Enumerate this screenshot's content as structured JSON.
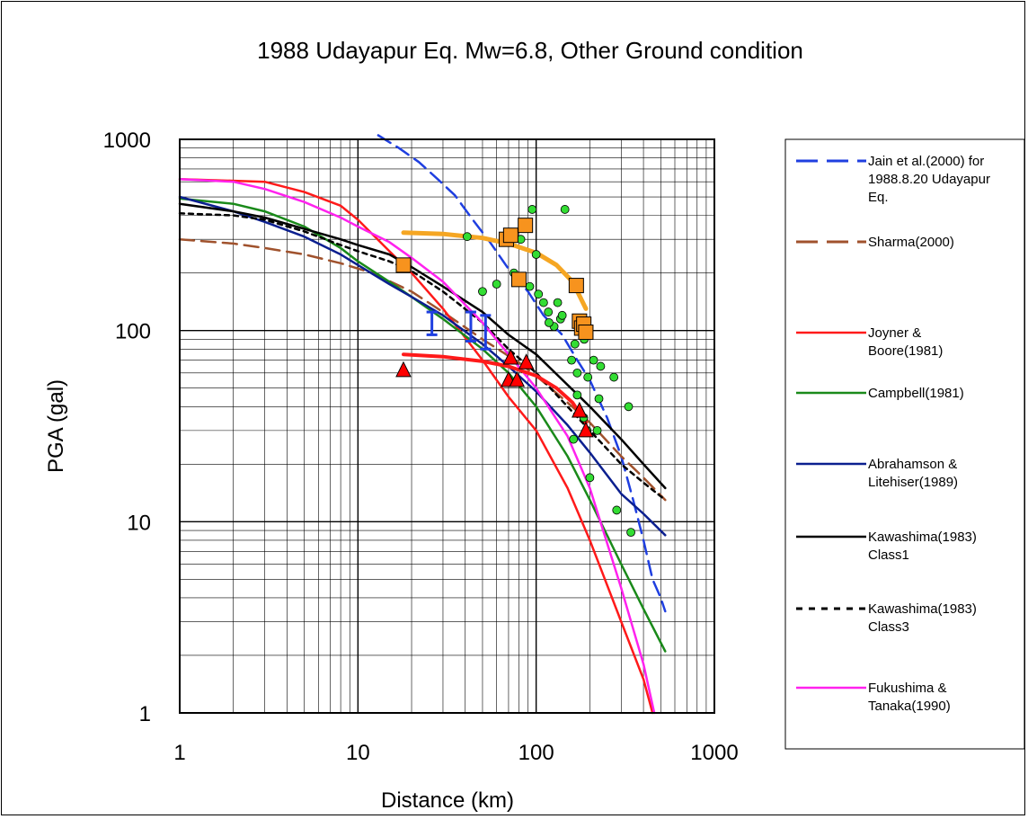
{
  "chart_data": {
    "type": "scatter",
    "title": "1988 Udayapur Eq. Mw=6.8, Other Ground condition",
    "xlabel": "Distance (km)",
    "ylabel": "PGA (gal)",
    "xscale": "log",
    "yscale": "log",
    "xlim": [
      1,
      1000
    ],
    "ylim": [
      1,
      1000
    ],
    "grid": true,
    "legend_position": "right",
    "x_ticks": [
      "1",
      "10",
      "100",
      "1000"
    ],
    "y_ticks": [
      "1",
      "10",
      "100",
      "1000"
    ],
    "legend": [
      {
        "label": "Jain et al.(2000) for 1988.8.20 Udayapur Eq.",
        "lines": [
          "Jain et al.(2000) for",
          "1988.8.20 Udayapur",
          "Eq."
        ],
        "color": "#1f3fe0",
        "dash": "dash"
      },
      {
        "label": "Sharma(2000)",
        "lines": [
          "Sharma(2000)"
        ],
        "color": "#a0522d",
        "dash": "dash"
      },
      {
        "label": "Joyner & Boore(1981)",
        "lines": [
          "Joyner &",
          "Boore(1981)"
        ],
        "color": "#ff1a1a",
        "dash": "solid"
      },
      {
        "label": "Campbell(1981)",
        "lines": [
          "Campbell(1981)"
        ],
        "color": "#1a8a1a",
        "dash": "solid"
      },
      {
        "label": "Abrahamson & Litehiser(1989)",
        "lines": [
          "Abrahamson &",
          "Litehiser(1989)"
        ],
        "color": "#0b1f8f",
        "dash": "solid"
      },
      {
        "label": "Kawashima(1983) Class1",
        "lines": [
          "Kawashima(1983)",
          "Class1"
        ],
        "color": "#000000",
        "dash": "solid"
      },
      {
        "label": "Kawashima(1983) Class3",
        "lines": [
          "Kawashima(1983)",
          "Class3"
        ],
        "color": "#000000",
        "dash": "dot"
      },
      {
        "label": "Fukushima & Tanaka(1990)",
        "lines": [
          "Fukushima &",
          "Tanaka(1990)"
        ],
        "color": "#ff22ee",
        "dash": "solid"
      }
    ],
    "curves": [
      {
        "name": "Jain et al.(2000) for 1988.8.20 Udayapur Eq.",
        "color": "#1f3fe0",
        "dash": "dash",
        "width": 2.5,
        "x": [
          13,
          17,
          22,
          28,
          35,
          45,
          55,
          70,
          90,
          110,
          140,
          170,
          200,
          250,
          300,
          350,
          400,
          450,
          500,
          530
        ],
        "y": [
          1050,
          900,
          760,
          620,
          510,
          370,
          290,
          210,
          160,
          120,
          95,
          70,
          55,
          35,
          22,
          13,
          8,
          5,
          4,
          3.4
        ]
      },
      {
        "name": "Sharma(2000)",
        "color": "#a0522d",
        "dash": "dash",
        "width": 2.5,
        "x": [
          1,
          2,
          3,
          5,
          8,
          12,
          20,
          30,
          50,
          80,
          100,
          150,
          200,
          300,
          400,
          530
        ],
        "y": [
          300,
          285,
          270,
          250,
          225,
          200,
          160,
          125,
          90,
          68,
          58,
          42,
          33,
          22,
          17,
          13
        ]
      },
      {
        "name": "Joyner & Boore(1981)",
        "color": "#ff1a1a",
        "dash": "solid",
        "width": 2.5,
        "x": [
          1,
          3,
          5,
          8,
          10,
          15,
          20,
          30,
          50,
          70,
          100,
          150,
          200,
          300,
          400,
          450
        ],
        "y": [
          620,
          600,
          530,
          450,
          380,
          260,
          200,
          130,
          70,
          45,
          30,
          15,
          8,
          3,
          1.5,
          1
        ]
      },
      {
        "name": "Campbell(1981)",
        "color": "#1a8a1a",
        "dash": "solid",
        "width": 2.5,
        "x": [
          1,
          2,
          3,
          5,
          8,
          10,
          15,
          20,
          30,
          50,
          70,
          100,
          150,
          200,
          300,
          400,
          530
        ],
        "y": [
          490,
          460,
          420,
          350,
          270,
          230,
          180,
          150,
          115,
          80,
          60,
          40,
          22,
          13,
          6,
          3.5,
          2.1
        ]
      },
      {
        "name": "Abrahamson & Litehiser(1989)",
        "color": "#0b1f8f",
        "dash": "solid",
        "width": 2.5,
        "x": [
          1,
          2,
          3,
          5,
          8,
          10,
          15,
          20,
          30,
          50,
          70,
          100,
          150,
          200,
          300,
          400,
          530
        ],
        "y": [
          500,
          420,
          370,
          310,
          250,
          220,
          175,
          150,
          120,
          85,
          65,
          48,
          32,
          23,
          14,
          11,
          8.5
        ]
      },
      {
        "name": "Kawashima(1983) Class1",
        "color": "#000000",
        "dash": "solid",
        "width": 2.5,
        "x": [
          1,
          2,
          3,
          5,
          8,
          10,
          15,
          20,
          30,
          50,
          70,
          100,
          150,
          200,
          300,
          400,
          530
        ],
        "y": [
          460,
          420,
          390,
          340,
          300,
          280,
          250,
          215,
          170,
          125,
          95,
          75,
          52,
          40,
          27,
          20,
          15
        ]
      },
      {
        "name": "Kawashima(1983) Class3",
        "color": "#000000",
        "dash": "dot",
        "width": 2.5,
        "x": [
          1,
          2,
          3,
          5,
          8,
          10,
          15,
          20,
          30,
          50,
          70,
          100,
          150,
          200,
          300,
          400,
          530
        ],
        "y": [
          410,
          400,
          380,
          330,
          280,
          260,
          230,
          205,
          160,
          110,
          80,
          60,
          40,
          30,
          20,
          16,
          13
        ]
      },
      {
        "name": "Fukushima & Tanaka(1990)",
        "color": "#ff22ee",
        "dash": "solid",
        "width": 2.5,
        "x": [
          1,
          2,
          3,
          5,
          8,
          10,
          15,
          20,
          30,
          50,
          70,
          100,
          150,
          200,
          300,
          400,
          460
        ],
        "y": [
          620,
          600,
          550,
          470,
          390,
          350,
          290,
          240,
          180,
          110,
          75,
          50,
          28,
          15,
          4.5,
          1.8,
          1
        ]
      },
      {
        "name": "",
        "color": "#f5a623",
        "dash": "solid",
        "width": 5,
        "x": [
          18,
          30,
          50,
          70,
          100,
          130,
          160,
          190
        ],
        "y": [
          325,
          320,
          305,
          285,
          255,
          220,
          180,
          130
        ]
      },
      {
        "name": "",
        "color": "#ff1a1a",
        "dash": "solid",
        "width": 4,
        "x": [
          18,
          30,
          50,
          70,
          100,
          130,
          160,
          190
        ],
        "y": [
          75,
          73,
          69,
          65,
          58,
          50,
          42,
          33
        ]
      }
    ],
    "points_circles": {
      "color": "#33dd33",
      "x": [
        41,
        50,
        60,
        95,
        145,
        75,
        82,
        100,
        92,
        103,
        110,
        117,
        132,
        126,
        137,
        140,
        118,
        158,
        165,
        170,
        186,
        195,
        210,
        230,
        225,
        273,
        330,
        185,
        193,
        220,
        170,
        162,
        283,
        340,
        200
      ],
      "y": [
        310,
        160,
        175,
        430,
        430,
        200,
        300,
        250,
        170,
        155,
        140,
        125,
        140,
        105,
        115,
        120,
        110,
        70,
        85,
        60,
        90,
        57,
        70,
        65,
        44,
        57,
        40,
        35,
        30,
        30,
        46,
        27,
        11.5,
        8.8,
        17
      ]
    },
    "points_squares": {
      "color": "#f7931e",
      "x": [
        18,
        68,
        72,
        80,
        87,
        168,
        175,
        180,
        185,
        190
      ],
      "y": [
        220,
        300,
        315,
        185,
        355,
        172,
        112,
        103,
        108,
        98
      ]
    },
    "points_triangles": {
      "color": "#ff0000",
      "x": [
        18,
        70,
        72,
        78,
        88,
        175,
        190
      ],
      "y": [
        62,
        55,
        72,
        55,
        68,
        38,
        30
      ]
    },
    "error_bars": {
      "color": "#1f3fe0",
      "x": [
        26,
        43,
        52
      ],
      "y": [
        110,
        105,
        100
      ],
      "low": [
        95,
        88,
        80
      ],
      "high": [
        125,
        125,
        120
      ]
    }
  }
}
